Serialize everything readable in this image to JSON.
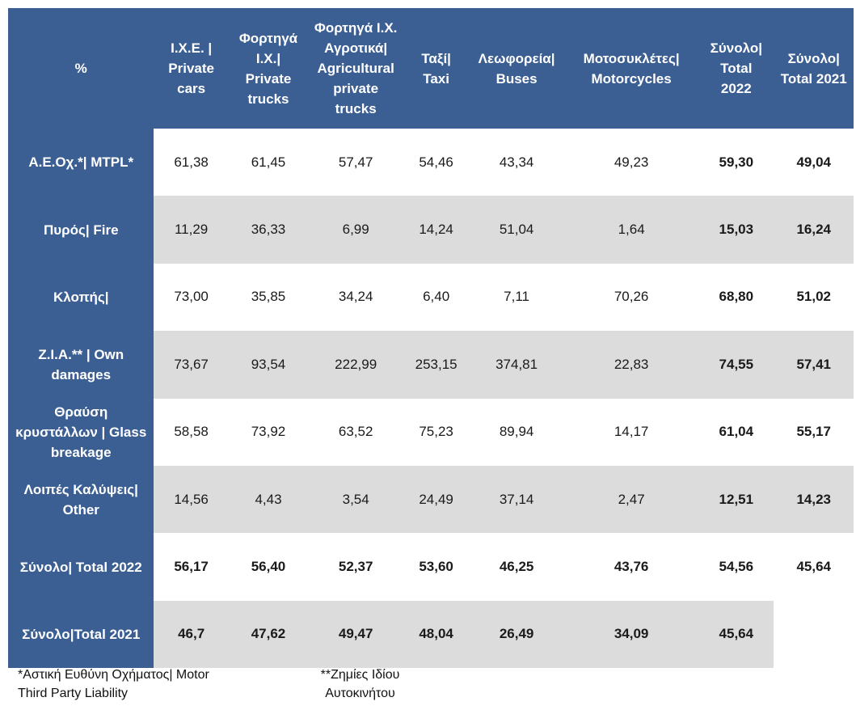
{
  "headers": [
    "%",
    "Ι.Χ.Ε. | Private cars",
    "Φορτηγά Ι.Χ.| Private trucks",
    "Φορτηγά Ι.Χ. Αγροτικά| Agricultural private trucks",
    "Ταξί| Taxi",
    "Λεωφορεία| Buses",
    "Μοτοσυκλέτες| Motorcycles",
    "Σύνολο| Total 2022",
    "Σύνολο| Total 2021"
  ],
  "rows": [
    {
      "label": "Α.Ε.Οχ.*| MTPL*",
      "values": [
        "61,38",
        "61,45",
        "57,47",
        "54,46",
        "43,34",
        "49,23",
        "59,30",
        "49,04"
      ]
    },
    {
      "label": "Πυρός| Fire",
      "values": [
        "11,29",
        "36,33",
        "6,99",
        "14,24",
        "51,04",
        "1,64",
        "15,03",
        "16,24"
      ]
    },
    {
      "label": "Κλοπής|",
      "values": [
        "73,00",
        "35,85",
        "34,24",
        "6,40",
        "7,11",
        "70,26",
        "68,80",
        "51,02"
      ]
    },
    {
      "label": "Ζ.Ι.Α.** | Own damages",
      "values": [
        "73,67",
        "93,54",
        "222,99",
        "253,15",
        "374,81",
        "22,83",
        "74,55",
        "57,41"
      ]
    },
    {
      "label": "Θραύση κρυστάλλων | Glass breakage",
      "values": [
        "58,58",
        "73,92",
        "63,52",
        "75,23",
        "89,94",
        "14,17",
        "61,04",
        "55,17"
      ]
    },
    {
      "label": "Λοιπές Καλύψεις| Other",
      "values": [
        "14,56",
        "4,43",
        "3,54",
        "24,49",
        "37,14",
        "2,47",
        "12,51",
        "14,23"
      ]
    },
    {
      "label": "Σύνολο| Total 2022",
      "values": [
        "56,17",
        "56,40",
        "52,37",
        "53,60",
        "46,25",
        "43,76",
        "54,56",
        "45,64"
      ]
    },
    {
      "label": "Σύνολο|Total 2021",
      "values": [
        "46,7",
        "47,62",
        "49,47",
        "48,04",
        "26,49",
        "34,09",
        "45,64",
        ""
      ]
    }
  ],
  "footnotes": {
    "mtpl": "*Αστική Ευθύνη Οχήματος| Motor Third Party Liability",
    "own_damages": "**Ζημίες Ιδίου Αυτοκινήτου"
  }
}
